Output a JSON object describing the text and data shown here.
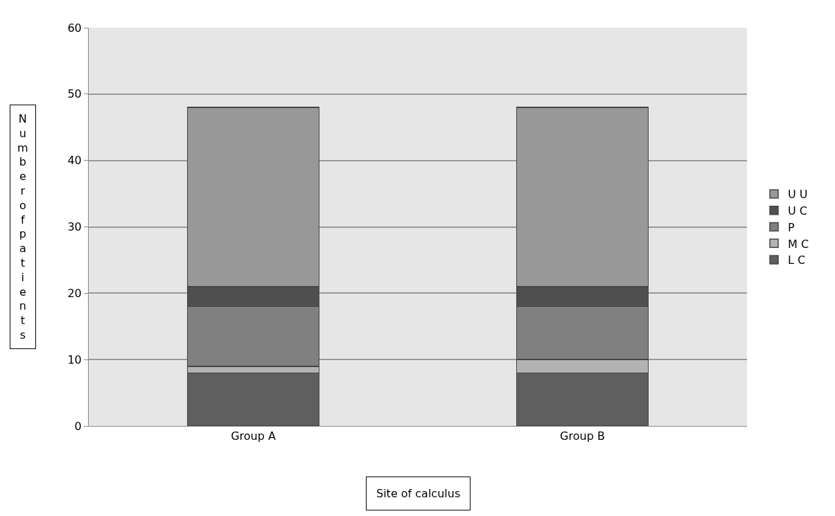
{
  "chart_data": {
    "type": "bar",
    "stacked": true,
    "xlabel": "Site of calculus",
    "ylabel": "Number of patients",
    "categories": [
      "Group A",
      "Group B"
    ],
    "series": [
      {
        "name": "L C",
        "color": "#5f5f5f",
        "values": [
          8,
          8
        ]
      },
      {
        "name": "M C",
        "color": "#b3b3b3",
        "values": [
          1,
          2
        ]
      },
      {
        "name": "P",
        "color": "#808080",
        "values": [
          9,
          8
        ]
      },
      {
        "name": "U C",
        "color": "#4f4f4f",
        "values": [
          3,
          3
        ]
      },
      {
        "name": "U U",
        "color": "#989898",
        "values": [
          27,
          27
        ]
      }
    ],
    "ylim": [
      0,
      60
    ],
    "yticks": [
      0,
      10,
      20,
      30,
      40,
      50,
      60
    ],
    "grid": "y",
    "legend": "right"
  }
}
